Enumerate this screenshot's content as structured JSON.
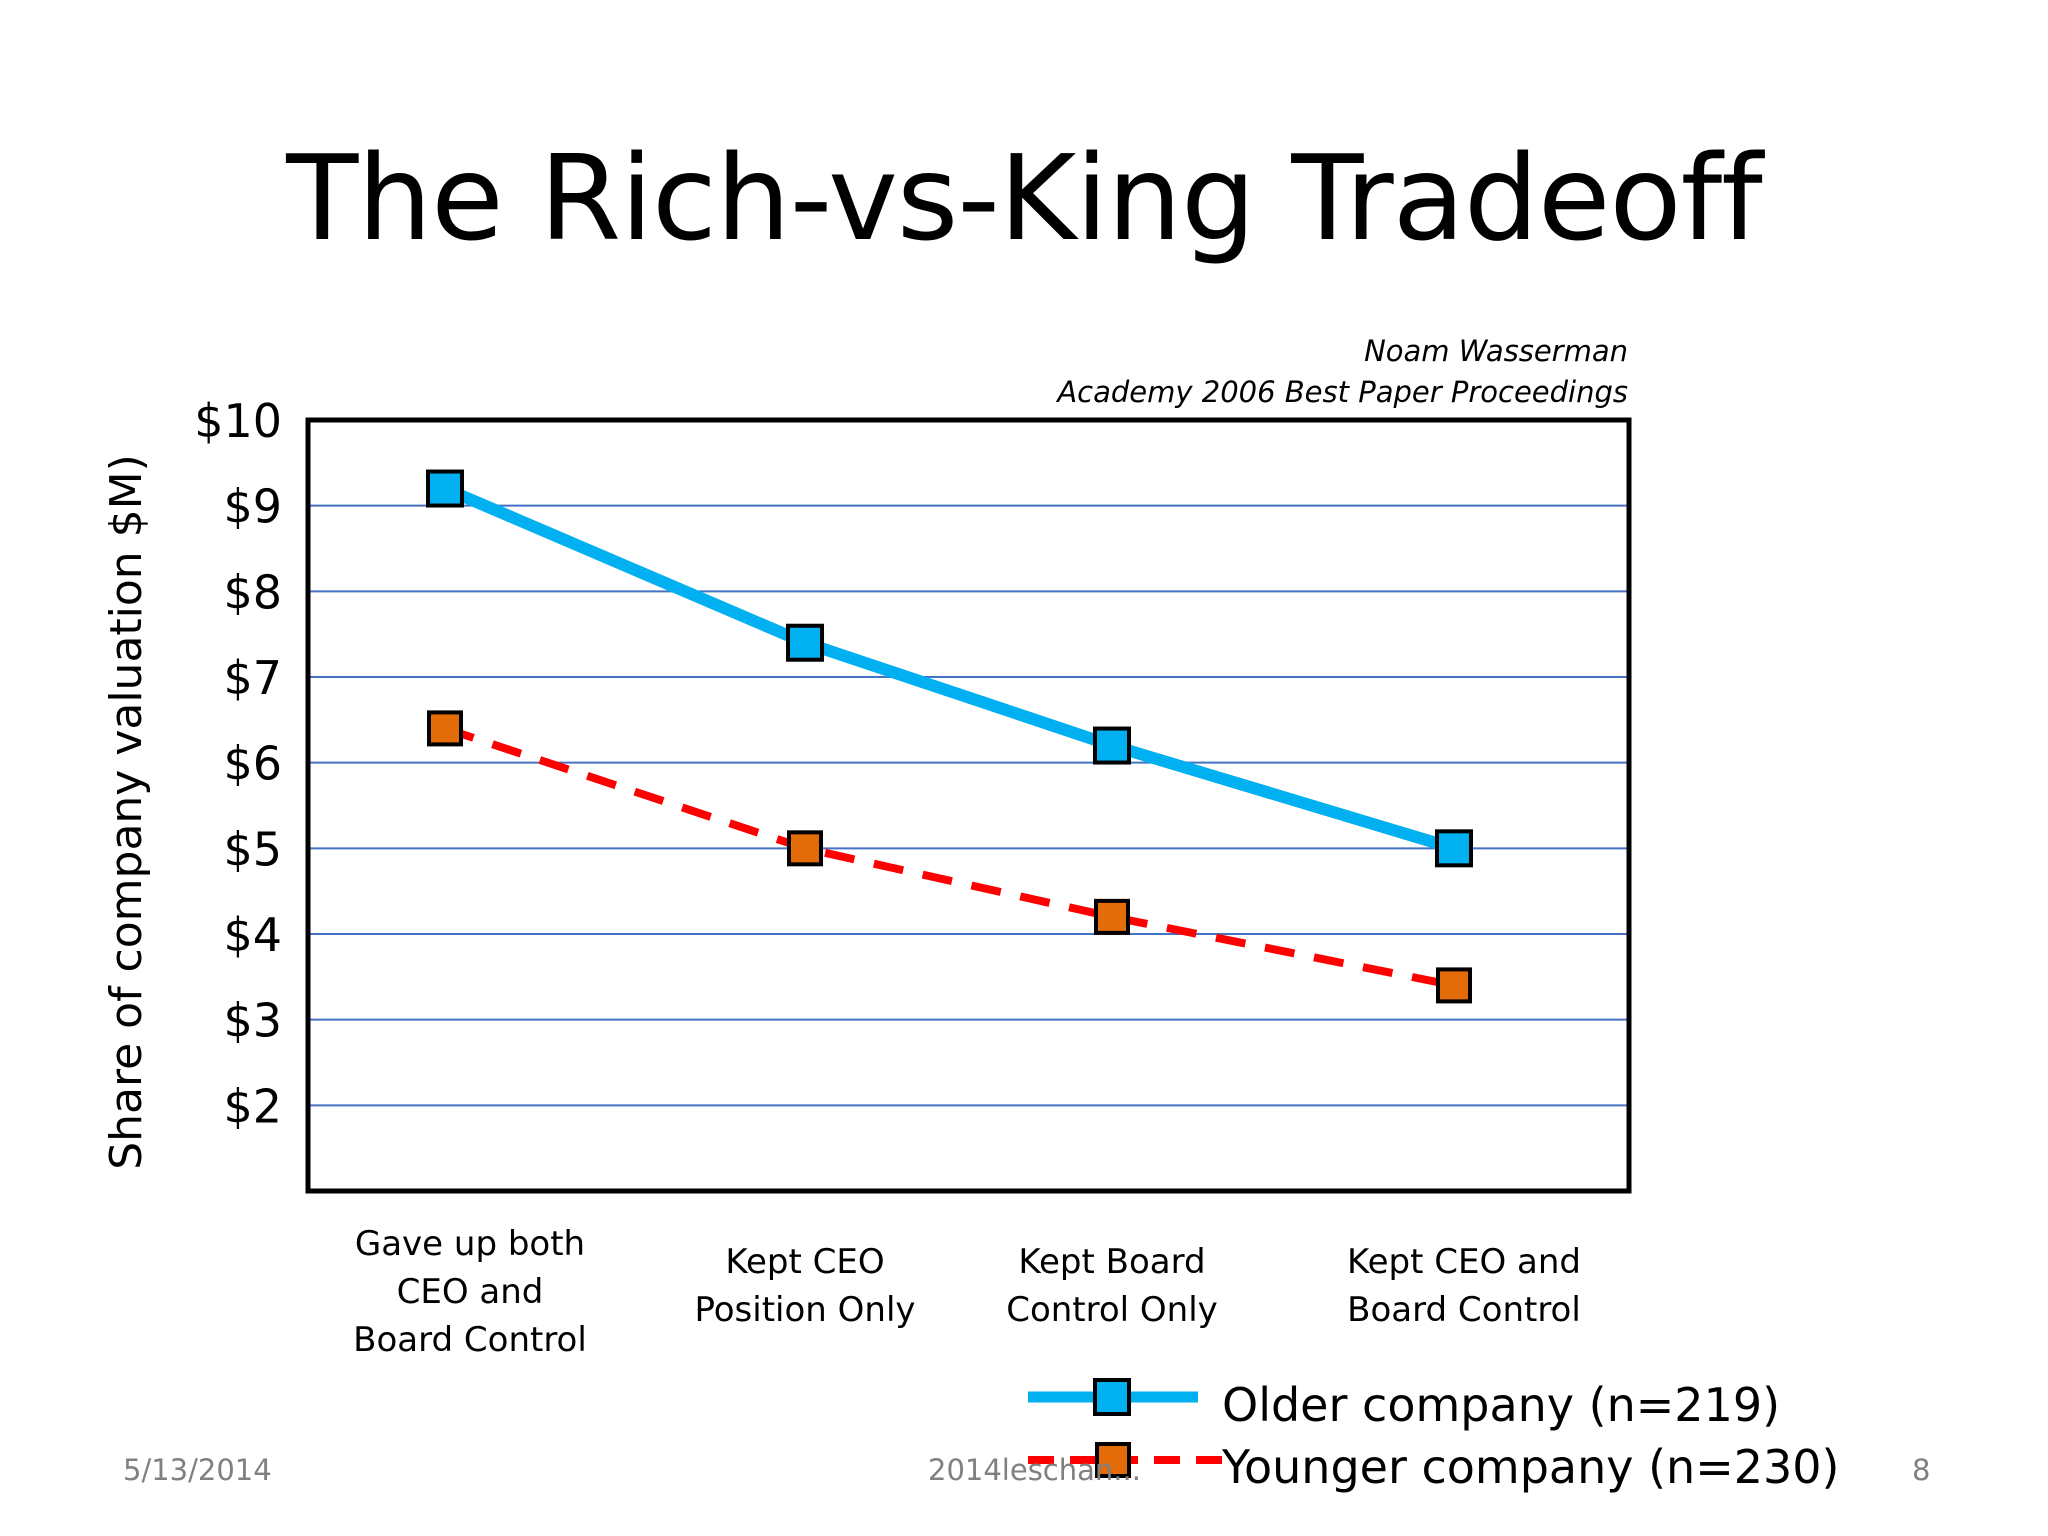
{
  "slide": {
    "title": "The Rich-vs-King Tradeoff",
    "attribution_author": "Noam Wasserman",
    "attribution_venue": "Academy 2006 Best Paper Proceedings",
    "footer_date": "5/13/2014",
    "footer_file": "2014leschan...",
    "page_number": "8"
  },
  "colors": {
    "older": "#00B0F0",
    "younger": "#FF0000",
    "older_marker": "#00B0F0",
    "younger_marker": "#E36C09",
    "gridline": "#4472C4"
  },
  "chart_data": {
    "type": "line",
    "title": "",
    "xlabel": "",
    "ylabel": "Share of company valuation $M)",
    "ylim": [
      1,
      10
    ],
    "yticks": [
      2,
      3,
      4,
      5,
      6,
      7,
      8,
      9,
      10
    ],
    "ytick_labels": [
      "$2",
      "$3",
      "$4",
      "$5",
      "$6",
      "$7",
      "$8",
      "$9",
      "$10"
    ],
    "grid": true,
    "legend_position": "bottom-right",
    "categories": [
      "Gave up both\nCEO and\nBoard Control",
      "Kept CEO\nPosition Only",
      "Kept Board\nControl Only",
      "Kept CEO and\nBoard Control"
    ],
    "series": [
      {
        "name": "Older company (n=219)",
        "values": [
          9.2,
          7.4,
          6.2,
          5.0
        ],
        "style": "solid"
      },
      {
        "name": "Younger company (n=230)",
        "values": [
          6.4,
          5.0,
          4.2,
          3.4
        ],
        "style": "dashed"
      }
    ]
  }
}
